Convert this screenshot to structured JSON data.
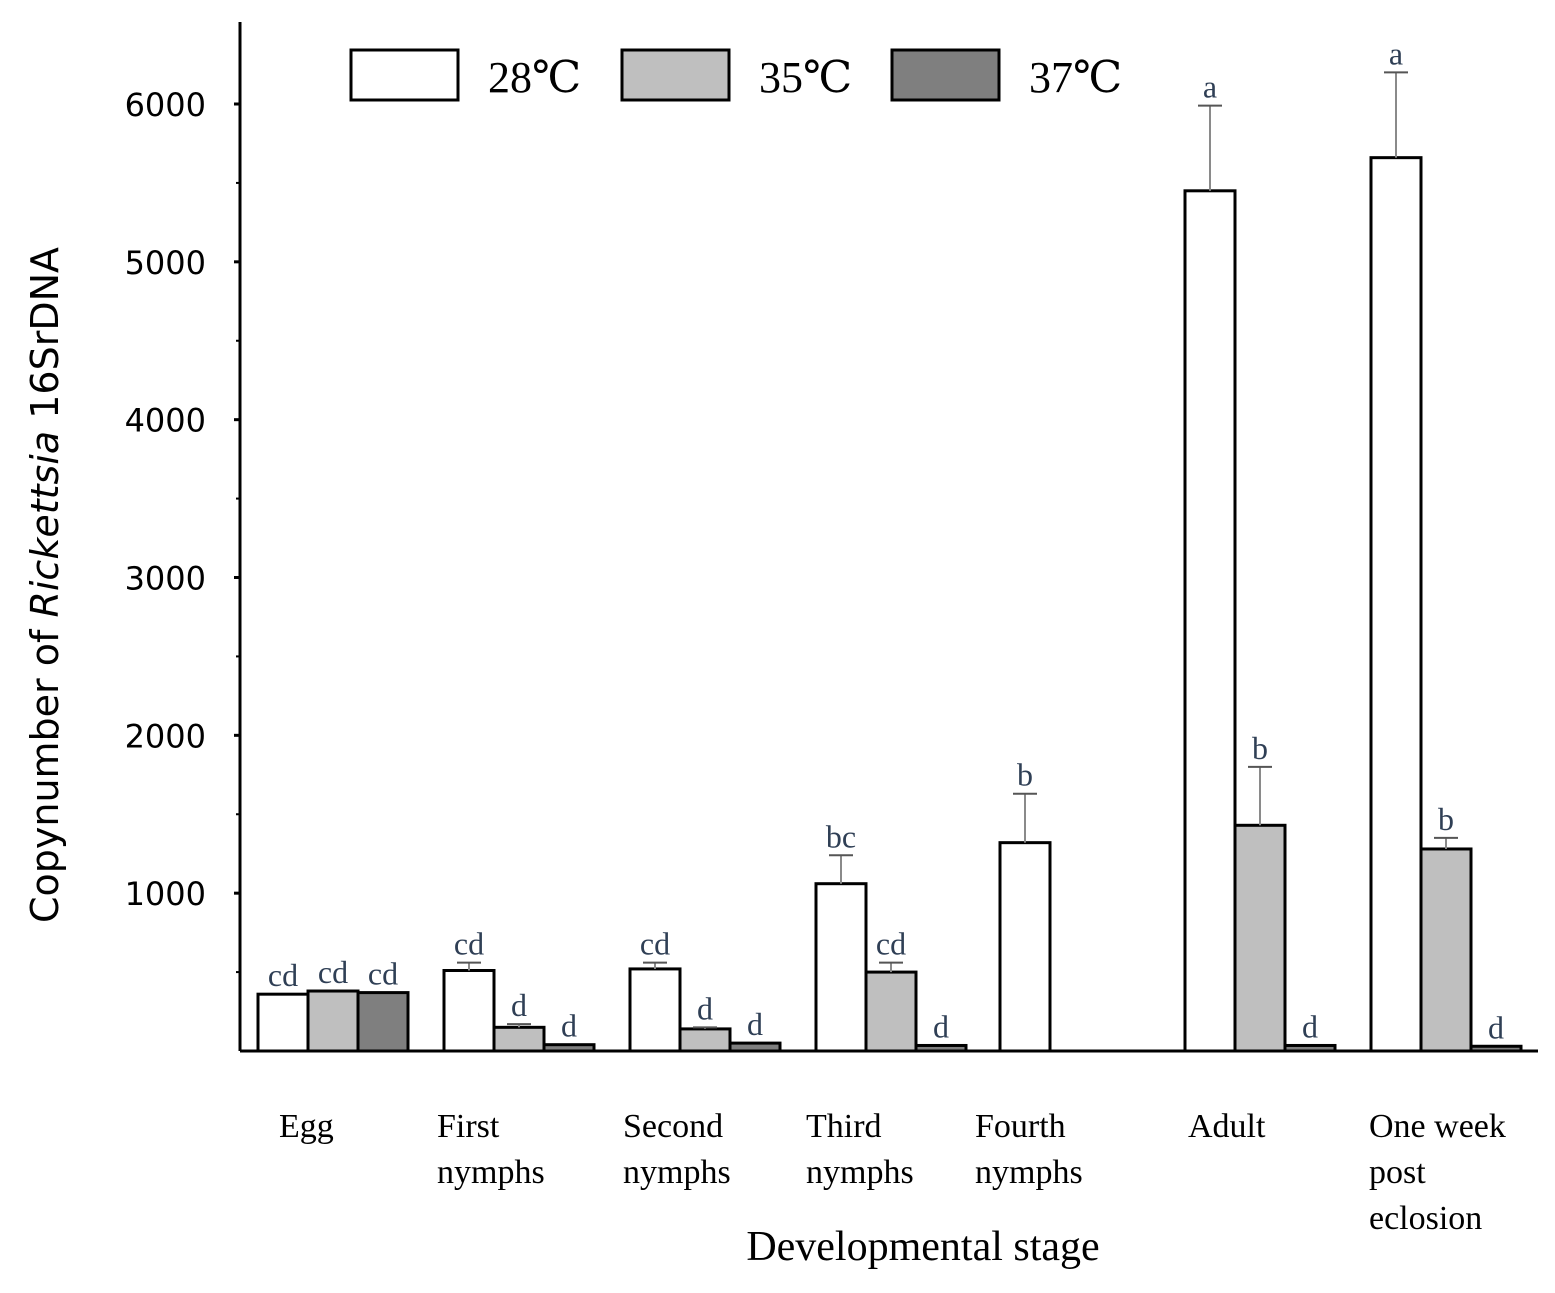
{
  "chart_data": {
    "type": "bar",
    "categories": [
      [
        "Egg"
      ],
      [
        "First",
        "nymphs"
      ],
      [
        "Second",
        "nymphs"
      ],
      [
        "Third",
        "nymphs"
      ],
      [
        "Fourth",
        "nymphs"
      ],
      [
        "Adult"
      ],
      [
        "One week",
        "post",
        "eclosion"
      ]
    ],
    "series": [
      {
        "name": "28℃",
        "color": "#ffffff",
        "values": [
          360,
          510,
          520,
          1060,
          1320,
          5450,
          5660
        ],
        "errors": [
          0,
          50,
          40,
          180,
          310,
          540,
          540
        ],
        "letters": [
          "cd",
          "cd",
          "cd",
          "bc",
          "b",
          "a",
          "a"
        ]
      },
      {
        "name": "35℃",
        "color": "#bfbfbf",
        "values": [
          380,
          150,
          140,
          500,
          null,
          1430,
          1280
        ],
        "errors": [
          0,
          20,
          10,
          60,
          null,
          370,
          70
        ],
        "letters": [
          "cd",
          "d",
          "d",
          "cd",
          "",
          "b",
          "b"
        ]
      },
      {
        "name": "37℃",
        "color": "#7f7f7f",
        "values": [
          370,
          40,
          50,
          35,
          null,
          35,
          30
        ],
        "errors": [
          0,
          0,
          0,
          0,
          null,
          0,
          0
        ],
        "letters": [
          "cd",
          "d",
          "d",
          "d",
          "",
          "d",
          "d"
        ]
      }
    ],
    "title": "",
    "xlabel": "Developmental stage",
    "ylabel": {
      "prefix": "Copynumber of ",
      "italic": "Rickettsia",
      "suffix": " 16SrDNA"
    },
    "yticks": [
      1000,
      2000,
      3000,
      4000,
      5000,
      6000
    ],
    "ylim": [
      0,
      6300
    ],
    "legend_position": "top",
    "grid": false
  }
}
